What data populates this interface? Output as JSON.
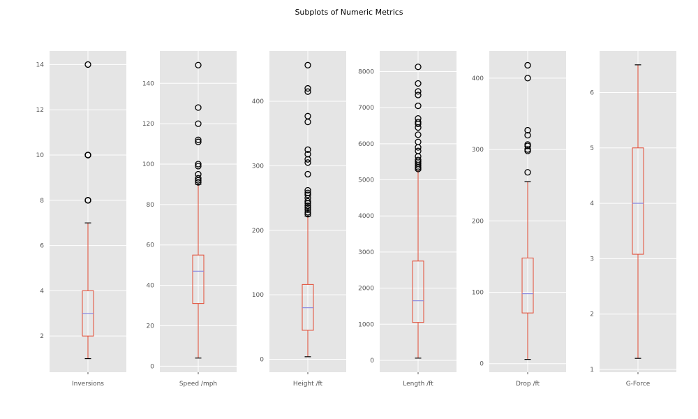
{
  "figure": {
    "title": "Subplots of Numeric Metrics"
  },
  "colors": {
    "panel_bg": "#e5e5e5",
    "grid": "#ffffff",
    "box": "#e24a33",
    "median": "#8c8cdf",
    "whisker_cap": "#000000",
    "flier": "#000000"
  },
  "chart_data": [
    {
      "type": "box",
      "label": "Inversions",
      "ylim": [
        0.4,
        14.6
      ],
      "yticks": [
        2,
        4,
        6,
        8,
        10,
        12,
        14
      ],
      "grid": true,
      "whisker_low": 1,
      "q1": 2,
      "median": 3,
      "q3": 4,
      "whisker_high": 7,
      "outliers": [
        8,
        8,
        8,
        10,
        10,
        10,
        14
      ]
    },
    {
      "type": "box",
      "label": "Speed /mph",
      "ylim": [
        -3,
        156
      ],
      "yticks": [
        0,
        20,
        40,
        60,
        80,
        100,
        120,
        140
      ],
      "grid": true,
      "whisker_low": 4,
      "q1": 31,
      "median": 47,
      "q3": 55,
      "whisker_high": 90,
      "outliers": [
        91,
        92,
        93,
        95,
        99,
        100,
        111,
        112,
        120,
        128,
        149
      ]
    },
    {
      "type": "box",
      "label": "Height /ft",
      "ylim": [
        -20,
        478
      ],
      "yticks": [
        0,
        100,
        200,
        300,
        400
      ],
      "grid": true,
      "whisker_low": 4,
      "q1": 45,
      "median": 80,
      "q3": 116,
      "whisker_high": 222,
      "outliers": [
        225,
        228,
        232,
        235,
        238,
        242,
        245,
        250,
        255,
        258,
        262,
        287,
        305,
        310,
        318,
        325,
        368,
        377,
        415,
        420,
        456
      ]
    },
    {
      "type": "box",
      "label": "Length /ft",
      "ylim": [
        -330,
        8570
      ],
      "yticks": [
        0,
        1000,
        2000,
        3000,
        4000,
        5000,
        6000,
        7000,
        8000
      ],
      "grid": true,
      "whisker_low": 60,
      "q1": 1050,
      "median": 1650,
      "q3": 2750,
      "whisker_high": 5270,
      "outliers": [
        5300,
        5350,
        5400,
        5450,
        5500,
        5550,
        5650,
        5800,
        5900,
        6050,
        6250,
        6450,
        6550,
        6600,
        6700,
        7050,
        7350,
        7450,
        7670,
        8130
      ]
    },
    {
      "type": "box",
      "label": "Drop /ft",
      "ylim": [
        -12,
        438
      ],
      "yticks": [
        0,
        100,
        200,
        300,
        400
      ],
      "grid": true,
      "whisker_low": 6,
      "q1": 71,
      "median": 98,
      "q3": 148,
      "whisker_high": 255,
      "outliers": [
        268,
        298,
        300,
        305,
        307,
        320,
        327,
        400,
        418
      ]
    },
    {
      "type": "box",
      "label": "G-Force",
      "ylim": [
        0.95,
        6.75
      ],
      "yticks": [
        1,
        2,
        3,
        4,
        5,
        6
      ],
      "grid": true,
      "whisker_low": 1.2,
      "q1": 3.08,
      "median": 4.0,
      "q3": 5.0,
      "whisker_high": 6.5,
      "outliers": []
    }
  ]
}
